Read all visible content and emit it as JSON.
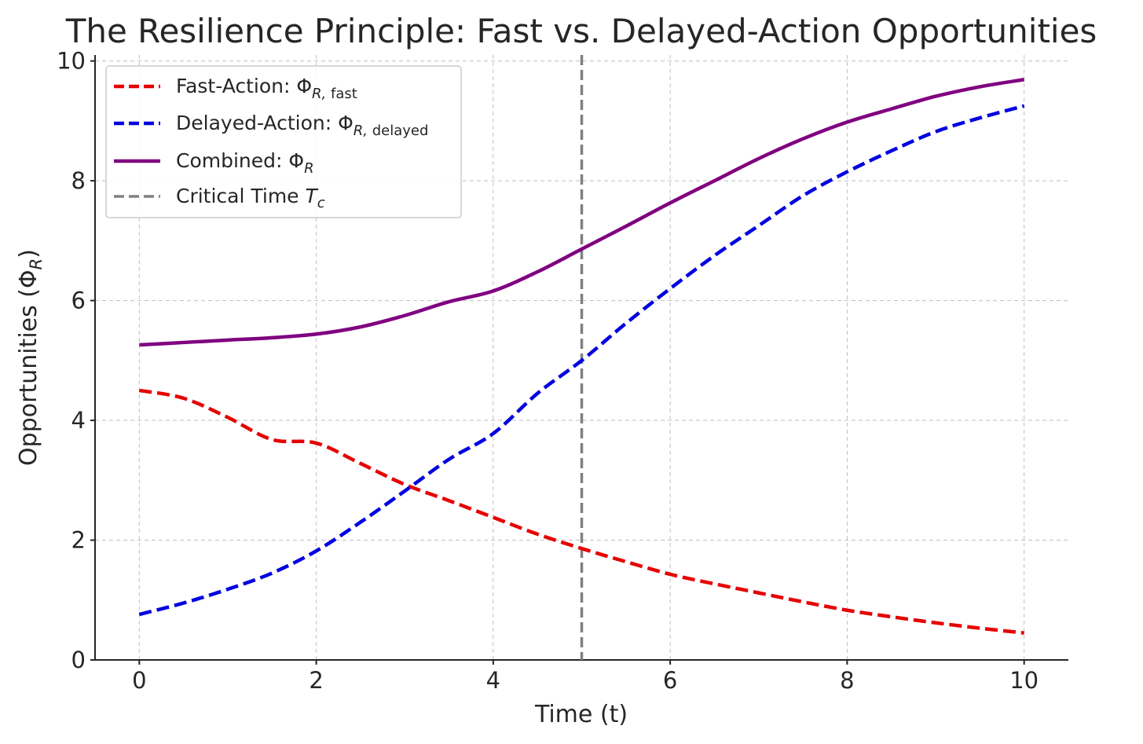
{
  "chart_data": {
    "type": "line",
    "title": "The Resilience Principle: Fast vs. Delayed-Action Opportunities",
    "xlabel": "Time (t)",
    "ylabel": "Opportunities (Φ_R)",
    "xlim": [
      -0.5,
      10.5
    ],
    "ylim": [
      0,
      10.1
    ],
    "xticks": [
      0,
      2,
      4,
      6,
      8,
      10
    ],
    "yticks": [
      0,
      2,
      4,
      6,
      8,
      10
    ],
    "grid": true,
    "legend_position": "top-left",
    "x": [
      0,
      0.5,
      1,
      1.5,
      2,
      2.5,
      3,
      3.5,
      4,
      4.5,
      5,
      5.5,
      6,
      6.5,
      7,
      7.5,
      8,
      8.5,
      9,
      9.5,
      10
    ],
    "series": [
      {
        "name": "Fast-Action: Φ_{R, fast}",
        "legend_main": "Fast-Action: Φ",
        "legend_sub": "R, fast",
        "color": "#e60000",
        "style": "dashed",
        "values": [
          4.5,
          4.37,
          4.05,
          3.68,
          3.62,
          3.28,
          2.93,
          2.66,
          2.38,
          2.1,
          1.86,
          1.64,
          1.43,
          1.27,
          1.12,
          0.97,
          0.83,
          0.72,
          0.62,
          0.53,
          0.45
        ]
      },
      {
        "name": "Delayed-Action: Φ_{R, delayed}",
        "legend_main": "Delayed-Action: Φ",
        "legend_sub": "R, delayed",
        "color": "#0000e0",
        "style": "dashed",
        "values": [
          0.76,
          0.95,
          1.18,
          1.45,
          1.82,
          2.3,
          2.82,
          3.35,
          3.78,
          4.45,
          5.0,
          5.62,
          6.2,
          6.75,
          7.25,
          7.75,
          8.15,
          8.5,
          8.82,
          9.05,
          9.25
        ]
      },
      {
        "name": "Combined: Φ_R",
        "legend_main": "Combined: Φ",
        "legend_sub": "R",
        "color": "#800080",
        "style": "solid",
        "values": [
          5.26,
          5.3,
          5.34,
          5.38,
          5.44,
          5.56,
          5.75,
          5.98,
          6.16,
          6.48,
          6.86,
          7.24,
          7.63,
          8.0,
          8.37,
          8.7,
          8.98,
          9.2,
          9.41,
          9.57,
          9.69
        ]
      }
    ],
    "vlines": [
      {
        "name": "Critical Time T_c",
        "legend_main": "Critical Time ",
        "legend_sub": "T",
        "legend_sub2": "c",
        "x": 5,
        "color": "#808080",
        "style": "dashed"
      }
    ]
  }
}
